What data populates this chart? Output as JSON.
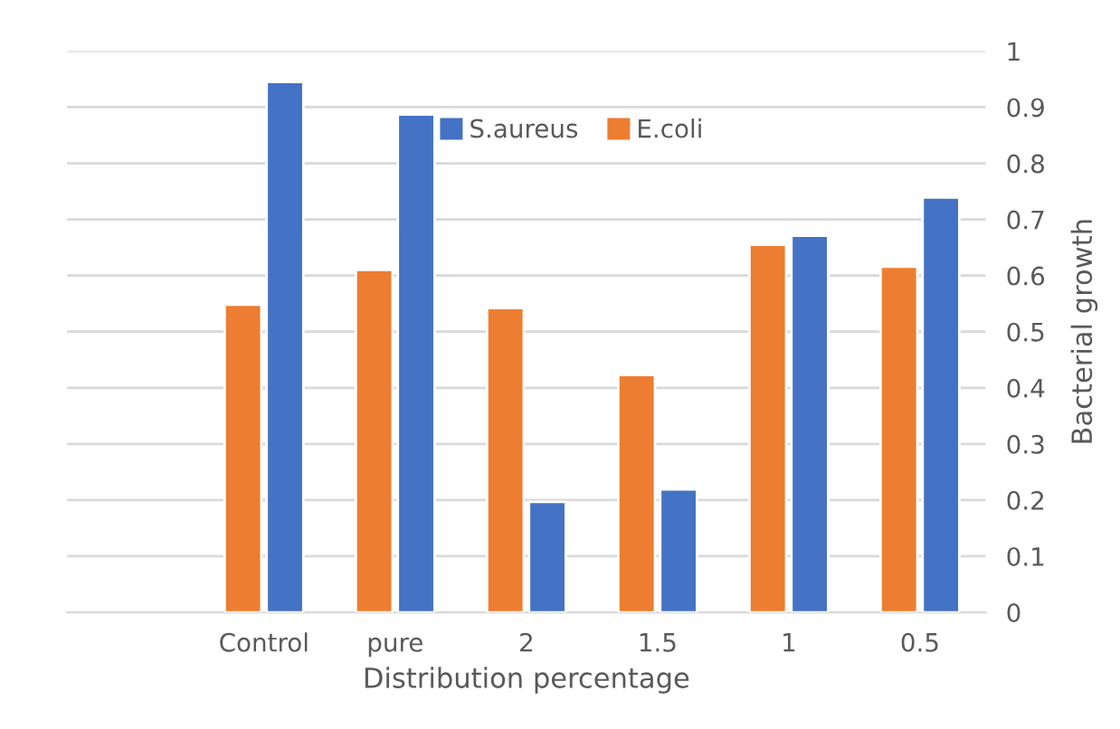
{
  "chart_data": {
    "type": "bar",
    "xlabel": "Distribution percentage",
    "ylabel": "Bacterial growth",
    "categories": [
      null,
      "Control",
      "pure",
      "2",
      "1.5",
      "1",
      "0.5"
    ],
    "series": [
      {
        "name": "E.coli",
        "color": "#ed7d31",
        "values": [
          null,
          0.548,
          0.61,
          0.542,
          0.423,
          0.655,
          0.616
        ]
      },
      {
        "name": "S.aureus",
        "color": "#4472c4",
        "values": [
          null,
          0.945,
          0.887,
          0.197,
          0.219,
          0.671,
          0.739
        ]
      }
    ],
    "ylim": [
      0,
      1
    ],
    "yticks": [
      0,
      0.1,
      0.2,
      0.3,
      0.4,
      0.5,
      0.6,
      0.7,
      0.8,
      0.9,
      1
    ],
    "grid": "y",
    "legend": "top"
  }
}
